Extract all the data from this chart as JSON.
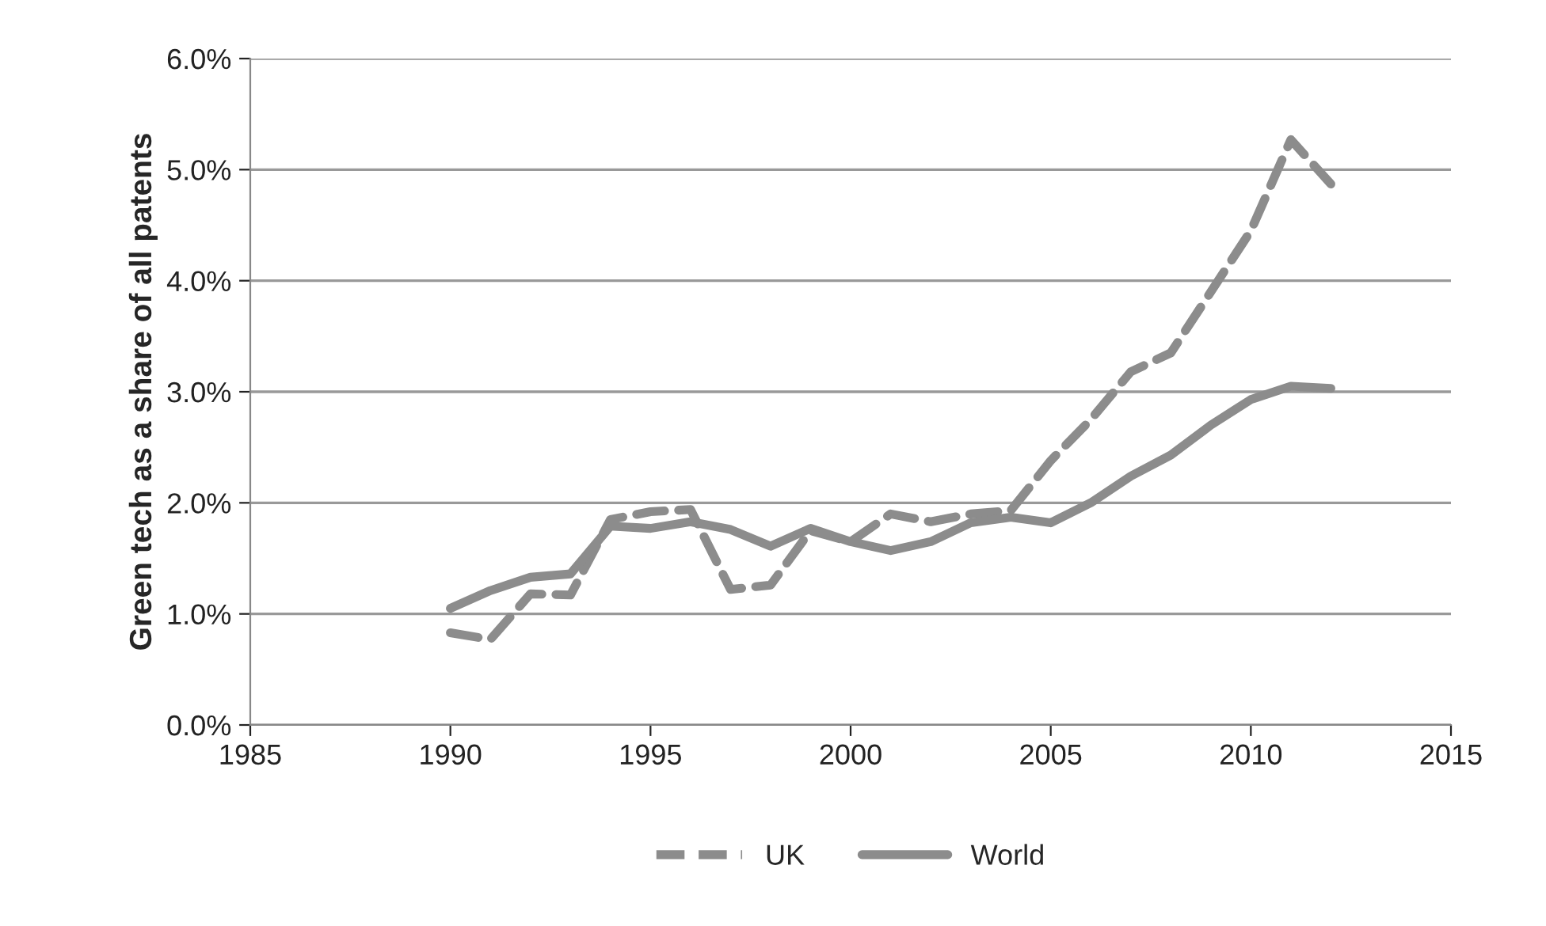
{
  "chart_data": {
    "type": "line",
    "ylabel": "Green tech as a share of all patents",
    "x": [
      1990,
      1991,
      1992,
      1993,
      1994,
      1995,
      1996,
      1997,
      1998,
      1999,
      2000,
      2001,
      2002,
      2003,
      2004,
      2005,
      2006,
      2007,
      2008,
      2009,
      2010,
      2011,
      2012
    ],
    "series": [
      {
        "name": "UK",
        "color": "#8c8c8c",
        "line_style": "dashed",
        "values": [
          0.83,
          0.77,
          1.18,
          1.17,
          1.85,
          1.92,
          1.94,
          1.22,
          1.26,
          1.75,
          1.65,
          1.9,
          1.83,
          1.9,
          1.93,
          2.38,
          2.75,
          3.18,
          3.35,
          3.9,
          4.45,
          5.27,
          4.87
        ]
      },
      {
        "name": "World",
        "color": "#8c8c8c",
        "line_style": "solid",
        "values": [
          1.05,
          1.21,
          1.33,
          1.36,
          1.79,
          1.77,
          1.83,
          1.76,
          1.61,
          1.77,
          1.65,
          1.57,
          1.65,
          1.82,
          1.87,
          1.82,
          2.0,
          2.24,
          2.43,
          2.7,
          2.93,
          3.05,
          3.03
        ]
      }
    ],
    "xlim": [
      1985,
      2015
    ],
    "xticks": [
      1985,
      1990,
      1995,
      2000,
      2005,
      2010,
      2015
    ],
    "ylim": [
      0,
      6
    ],
    "yticks": [
      {
        "value": 0,
        "label": "0.0%"
      },
      {
        "value": 1,
        "label": "1.0%"
      },
      {
        "value": 2,
        "label": "2.0%"
      },
      {
        "value": 3,
        "label": "3.0%"
      },
      {
        "value": 4,
        "label": "4.0%"
      },
      {
        "value": 5,
        "label": "5.0%"
      },
      {
        "value": 6,
        "label": "6.0%"
      }
    ],
    "grid": "y",
    "legend": "bottom"
  }
}
